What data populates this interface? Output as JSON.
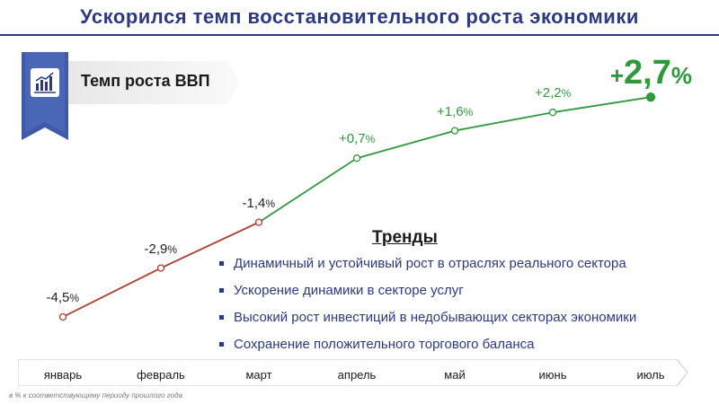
{
  "title": "Ускорился темп восстановительного роста экономики",
  "badge": {
    "label": "Темп роста ВВП",
    "icon": "bar-chart-icon"
  },
  "trends": {
    "title": "Тренды",
    "items": [
      "Динамичный и устойчивый рост в отраслях реального сектора",
      "Ускорение динамики в секторе услуг",
      "Высокий рост инвестиций в недобывающих секторах экономики",
      "Сохранение положительного торгового баланса"
    ]
  },
  "footnote": "в % к соответствующему периоду прошлого года",
  "colors": {
    "title": "#2b3a80",
    "negative_line": "#b03a2e",
    "positive_line": "#2e9a3c",
    "banner": "#3f5aa8"
  },
  "chart_data": {
    "type": "line",
    "categories": [
      "январь",
      "февраль",
      "март",
      "апрель",
      "май",
      "июнь",
      "июль"
    ],
    "values": [
      -4.5,
      -2.9,
      -1.4,
      0.7,
      1.6,
      2.2,
      2.7
    ],
    "value_labels": [
      "-4,5",
      "-2,9",
      "-1,4",
      "+0,7",
      "+1,6",
      "+2,2",
      "+2,7"
    ],
    "unit": "%",
    "ylim": [
      -5,
      3
    ],
    "highlight": {
      "sign": "+",
      "value": "2,7",
      "unit": "%"
    },
    "grid": false
  }
}
